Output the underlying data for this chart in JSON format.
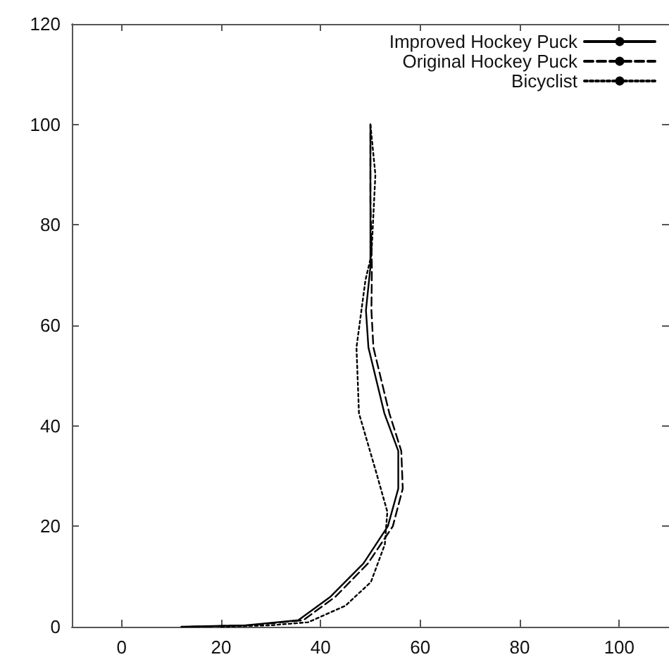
{
  "chart_data": {
    "type": "line",
    "xlim": [
      -10,
      110
    ],
    "xticks": [
      0,
      20,
      40,
      60,
      80,
      100
    ],
    "ylim": [
      0,
      120
    ],
    "yticks": [
      0,
      20,
      40,
      60,
      80,
      100,
      120
    ],
    "legend": "top right",
    "grid": false,
    "marker": "none",
    "series": [
      {
        "name": "Improved Hockey Puck",
        "color": "#000000",
        "line_style": "solid",
        "x": [
          12,
          25,
          35.5,
          42,
          48.6,
          53.5,
          55.6,
          55.6,
          52.8,
          49.6,
          49.1,
          50,
          50,
          50
        ],
        "values": [
          0,
          0.3,
          1.3,
          6,
          12.6,
          20,
          27.5,
          35,
          42.5,
          55.6,
          63,
          71.6,
          85,
          100
        ]
      },
      {
        "name": "Original Hockey Puck",
        "color": "#000000",
        "line_style": "dashed",
        "x": [
          14,
          26,
          36.5,
          43,
          49.5,
          54.5,
          56.5,
          56.2,
          53.8,
          50.6,
          50.2,
          50.3,
          50,
          50
        ],
        "values": [
          0,
          0.3,
          1.3,
          6,
          12.6,
          20,
          27.5,
          35,
          42.5,
          55.6,
          63,
          71.6,
          85,
          100
        ]
      },
      {
        "name": "Bicyclist",
        "color": "#000000",
        "line_style": "dotted",
        "x": [
          20,
          30,
          37.5,
          45,
          50.1,
          52.9,
          53.4,
          51,
          47.7,
          47.2,
          49,
          50.2,
          51,
          50
        ],
        "values": [
          0,
          0.3,
          0.9,
          4.2,
          8.9,
          16.4,
          22.9,
          31.3,
          42.5,
          55.6,
          69,
          74,
          90,
          100
        ]
      }
    ]
  }
}
